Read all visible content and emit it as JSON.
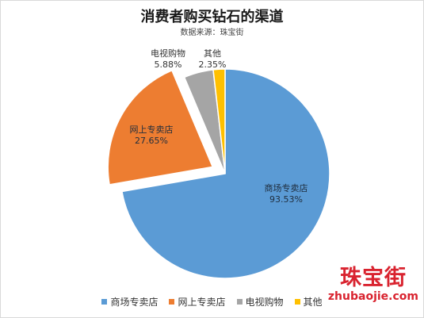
{
  "chart_data": {
    "type": "pie",
    "title": "消费者购买钻石的渠道",
    "subtitle": "数据来源：珠宝街",
    "slices": [
      {
        "label": "商场专卖店",
        "value": 93.53,
        "display": "93.53%",
        "color": "#5b9bd5",
        "exploded": false
      },
      {
        "label": "网上专卖店",
        "value": 27.65,
        "display": "27.65%",
        "color": "#ed7d31",
        "exploded": true
      },
      {
        "label": "电视购物",
        "value": 5.88,
        "display": "5.88%",
        "color": "#a5a5a5",
        "exploded": false
      },
      {
        "label": "其他",
        "value": 2.35,
        "display": "2.35%",
        "color": "#ffc000",
        "exploded": false
      }
    ],
    "legend": [
      "商场专卖店",
      "网上专卖店",
      "电视购物",
      "其他"
    ],
    "legend_position": "bottom"
  },
  "watermark": {
    "name": "珠宝街",
    "url": "zhubaojie.com"
  }
}
